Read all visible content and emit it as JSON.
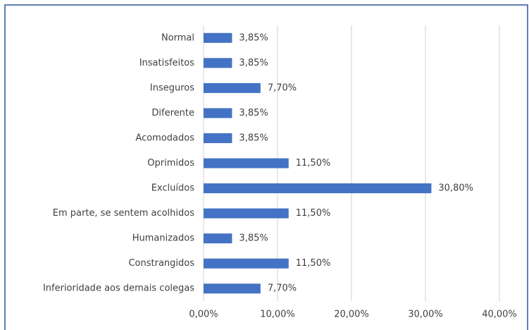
{
  "chart_data": {
    "type": "bar",
    "orientation": "horizontal",
    "categories": [
      "Normal",
      "Insatisfeitos",
      "Inseguros",
      "Diferente",
      "Acomodados",
      "Oprimidos",
      "Excluídos",
      "Em parte, se sentem acolhidos",
      "Humanizados",
      "Constrangidos",
      "Inferioridade aos demais colegas"
    ],
    "values": [
      3.85,
      3.85,
      7.7,
      3.85,
      3.85,
      11.5,
      30.8,
      11.5,
      3.85,
      11.5,
      7.7
    ],
    "value_labels": [
      "3,85%",
      "3,85%",
      "7,70%",
      "3,85%",
      "3,85%",
      "11,50%",
      "30,80%",
      "11,50%",
      "3,85%",
      "11,50%",
      "7,70%"
    ],
    "color": "#4472c4",
    "xlim": [
      0,
      40
    ],
    "xticks": [
      {
        "value": 0,
        "label": "0,00%"
      },
      {
        "value": 10,
        "label": "10,00%"
      },
      {
        "value": 20,
        "label": "20,00%"
      },
      {
        "value": 30,
        "label": "30,00%"
      },
      {
        "value": 40,
        "label": "40,00%"
      }
    ],
    "grid": true
  }
}
